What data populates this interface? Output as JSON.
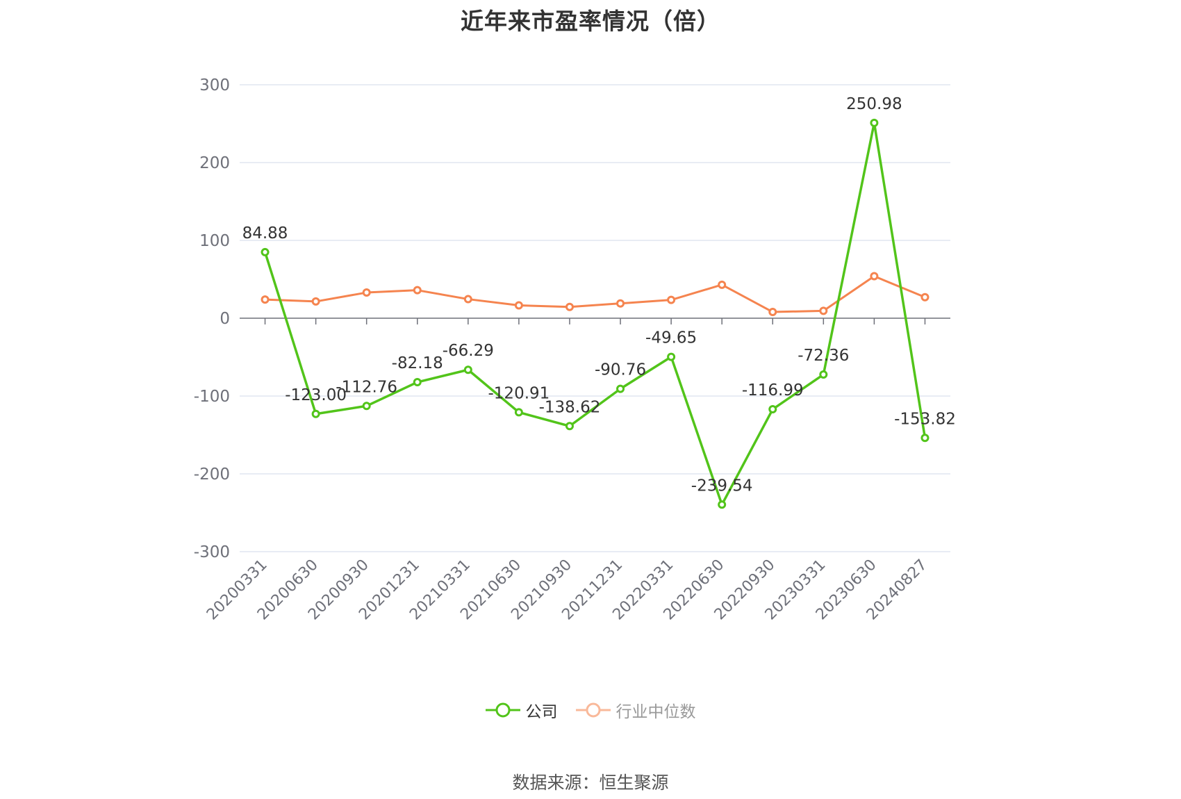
{
  "chart_data": {
    "type": "line",
    "title": "近年来市盈率情况（倍）",
    "categories": [
      "20200331",
      "20200630",
      "20200930",
      "20201231",
      "20210331",
      "20210630",
      "20210930",
      "20211231",
      "20220331",
      "20220630",
      "20220930",
      "20230331",
      "20230630",
      "20240827"
    ],
    "series": [
      {
        "name": "公司",
        "color": "#52c41a",
        "values": [
          84.88,
          -123.0,
          -112.76,
          -82.18,
          -66.29,
          -120.91,
          -138.62,
          -90.76,
          -49.65,
          -239.54,
          -116.99,
          -72.36,
          250.98,
          -153.82
        ],
        "labels": [
          "84.88",
          "-123.00",
          "-112.76",
          "-82.18",
          "-66.29",
          "-120.91",
          "-138.62",
          "-90.76",
          "-49.65",
          "-239.54",
          "-116.99",
          "-72.36",
          "250.98",
          "-153.82"
        ]
      },
      {
        "name": "行业中位数",
        "color": "#f5844f",
        "values": [
          24.0,
          21.5,
          33.0,
          36.0,
          24.5,
          16.5,
          14.5,
          19.0,
          23.5,
          43.0,
          8.0,
          9.5,
          54.0,
          27.0
        ]
      }
    ],
    "y_ticks": [
      300,
      200,
      100,
      0,
      -100,
      -200,
      -300
    ],
    "ylim": [
      -300,
      300
    ],
    "grid": true,
    "legend_position": "bottom"
  },
  "source_note": "数据来源：恒生聚源"
}
